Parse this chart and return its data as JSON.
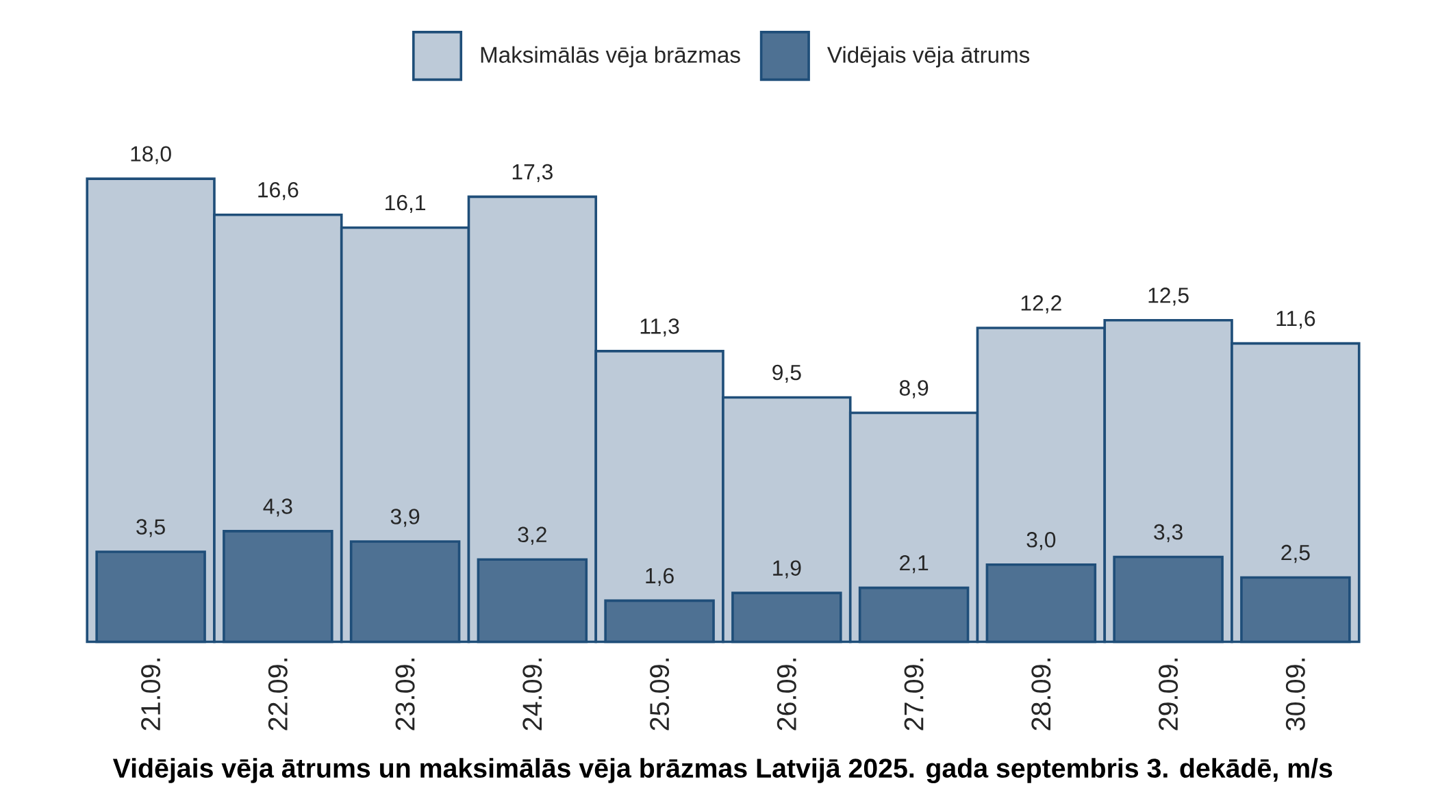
{
  "chart_data": {
    "type": "bar",
    "title": "**Vidējais vēja ātrums un maksimālās vēja brāzmas Latvijā 2025. gada septembris 3. dekādē, m/s**",
    "categories": [
      "21.09.",
      "22.09.",
      "23.09.",
      "24.09.",
      "25.09.",
      "26.09.",
      "27.09.",
      "28.09.",
      "29.09.",
      "30.09."
    ],
    "series": [
      {
        "name": "Maksimālās vēja brāzmas",
        "color": "#bdcad8",
        "values": [
          18.0,
          16.6,
          16.1,
          17.3,
          11.3,
          9.5,
          8.9,
          12.2,
          12.5,
          11.6
        ],
        "value_labels": [
          "18,0",
          "16,6",
          "16,1",
          "17,3",
          "11,3",
          "9,5",
          "8,9",
          "12,2",
          "12,5",
          "11,6"
        ]
      },
      {
        "name": "Vidējais vēja ātrums",
        "color": "#4e7193",
        "values": [
          3.5,
          4.3,
          3.9,
          3.2,
          1.6,
          1.9,
          2.1,
          3.0,
          3.3,
          2.5
        ],
        "value_labels": [
          "3,5",
          "4,3",
          "3,9",
          "3,2",
          "1,6",
          "1,9",
          "2,1",
          "3,0",
          "3,3",
          "2,5"
        ]
      }
    ],
    "legend": "top",
    "tick_labels": "x"
  }
}
